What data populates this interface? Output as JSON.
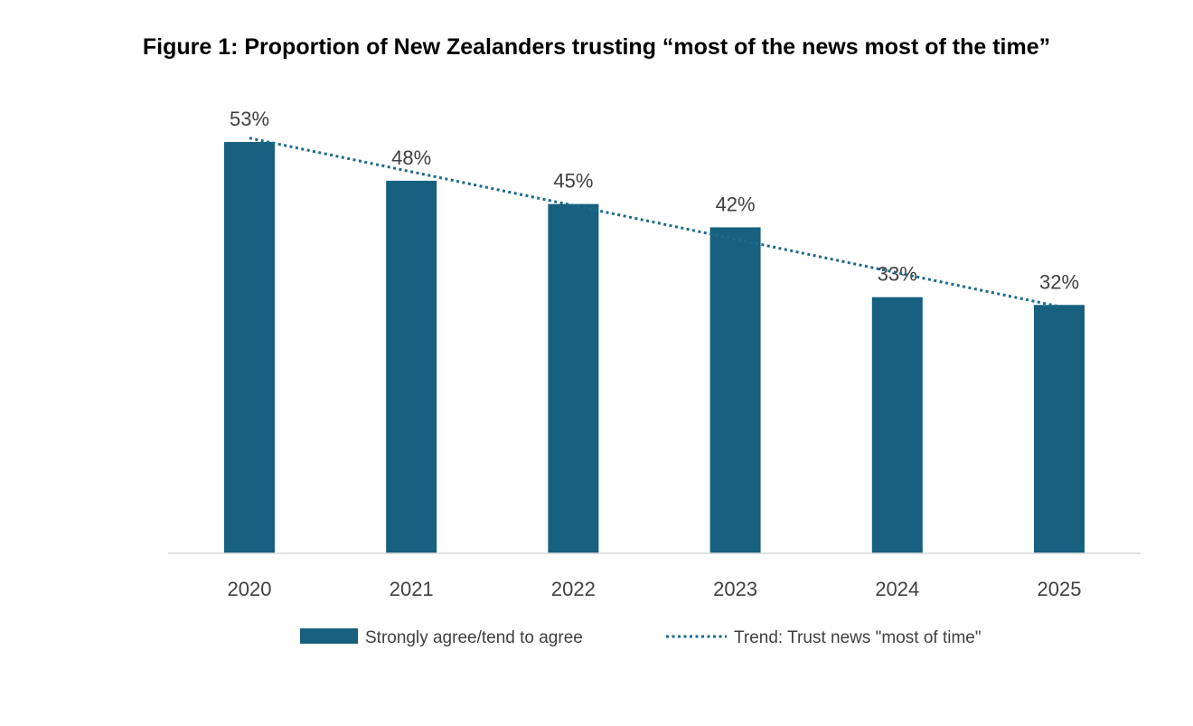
{
  "chart_data": {
    "type": "bar",
    "title": "Figure 1: Proportion of New Zealanders trusting “most of the news most of the time”",
    "categories": [
      "2020",
      "2021",
      "2022",
      "2023",
      "2024",
      "2025"
    ],
    "series": [
      {
        "name": "Strongly agree/tend to agree",
        "values": [
          53,
          48,
          45,
          42,
          33,
          32
        ],
        "value_labels": [
          "53%",
          "48%",
          "45%",
          "42%",
          "33%",
          "32%"
        ],
        "color": "#17607f"
      }
    ],
    "trendline": {
      "name": "Trend: Trust news \"most of time\"",
      "style": "dotted",
      "color": "#1d6a8a",
      "start_value": 53.5,
      "end_value": 31.8
    },
    "ylim": [
      0,
      53
    ],
    "grid": false,
    "legend_position": "bottom"
  }
}
